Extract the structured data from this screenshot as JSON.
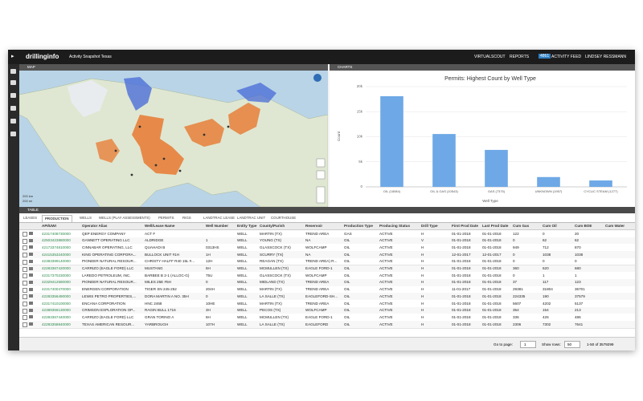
{
  "topbar": {
    "logo": "drillinginfo",
    "workspace": "Activity Snapshot Texas",
    "links": [
      "VIRTUALSCOUT",
      "REPORTS"
    ],
    "badge": "4861",
    "feed": "ACTIVITY FEED",
    "user": "LINDSEY RESSMANN"
  },
  "map": {
    "title": "MAP",
    "scale": [
      "200 km",
      "200 mi"
    ]
  },
  "charts": {
    "title": "CHARTS"
  },
  "chart_data": {
    "type": "bar",
    "title": "Permits: Highest Count by Well Type",
    "xlabel": "Well Type",
    "ylabel": "Count",
    "categories": [
      "OIL (18084)",
      "OIL & GAS (10543)",
      "GAS (7375)",
      "UNKNOWN (1957)",
      "CYCLIC STEAM (1277)"
    ],
    "values": [
      18084,
      10543,
      7375,
      1957,
      1277
    ],
    "color": "#6ea8e6",
    "ylim": [
      0,
      20000
    ],
    "yticks": [
      0,
      {
        "value": 5000,
        "label": "5k"
      },
      {
        "value": 10000,
        "label": "10k"
      },
      {
        "value": 15000,
        "label": "15k"
      },
      {
        "value": 20000,
        "label": "20k"
      }
    ],
    "grid": true
  },
  "table": {
    "title": "TABLE",
    "tabs": [
      "LEASES",
      "PRODUCTION",
      "WELLS",
      "WELLS (PLAY ASSESSMENTS)",
      "PERMITS",
      "RIGS",
      "LANDTRAC LEASE",
      "LANDTRAC UNIT",
      "COURTHOUSE"
    ],
    "active_tab": 1,
    "columns": [
      "API/UWI",
      "Operator Alias",
      "Well/Lease Name",
      "Well Number",
      "Entity Type",
      "County/Parish",
      "Reservoir",
      "Production Type",
      "Producing Status",
      "Drill Type",
      "First Prod Date",
      "Last Prod Date",
      "Cum Gas",
      "Cum Oil",
      "Cum BOE",
      "Cum Water"
    ],
    "rows": [
      [
        "42317408730000",
        "QEP ENERGY COMPANY",
        "ACT F",
        null,
        "WELL",
        "MARTIN (TX)",
        "TREND AREA",
        "GAS",
        "ACTIVE",
        "H",
        "01-01-2018",
        "01-01-2018",
        122,
        0,
        20,
        null
      ],
      [
        "42503423880000",
        "GANNETT OPERATING LLC",
        "ALDRIDGE",
        "1",
        "WELL",
        "YOUNG (TX)",
        "NA",
        "OIL",
        "ACTIVE",
        "V",
        "01-01-2018",
        "01-01-2018",
        0,
        62,
        62,
        null
      ],
      [
        "42173374810000",
        "CINNABAR OPERATING, LLC",
        "QUAHADI B",
        "0313HS",
        "WELL",
        "GLASSCOCK (TX)",
        "WOLFCAMP",
        "OIL",
        "ACTIVE",
        "H",
        "01-01-2018",
        "01-01-2018",
        949,
        712,
        870,
        null
      ],
      [
        "42415353240000",
        "KING OPERATING CORPORA...",
        "BULLOCK UNIT #1H",
        "1H",
        "WELL",
        "SCURRY (TX)",
        "NA",
        "OIL",
        "ACTIVE",
        "H",
        "12-01-2017",
        "12-01-2017",
        0,
        1038,
        1038,
        null
      ],
      [
        "42383399140000",
        "PIONEER NATURAL RESOUR...",
        "CHRISTY HALFF R40 15L #...",
        "12H",
        "WELL",
        "REAGAN (TX)",
        "TREND AREA) R...",
        "OIL",
        "ACTIVE",
        "H",
        "01-01-2018",
        "01-01-2018",
        0,
        0,
        0,
        null
      ],
      [
        "42283367420000",
        "CARRIZO (EAGLE FORD) LLC",
        "MUSTANG",
        "6H",
        "WELL",
        "MCMULLEN (TX)",
        "EAGLE FORD-1",
        "OIL",
        "ACTIVE",
        "H",
        "01-01-2018",
        "01-01-2018",
        360,
        620,
        680,
        null
      ],
      [
        "42317370230000",
        "LAREDO PETROLEUM, INC.",
        "BARBEE B 2-1 (ALLOC-G)",
        "75U",
        "WELL",
        "GLASSCOCK (TX)",
        "WOLFCAMP",
        "OIL",
        "ACTIVE",
        "H",
        "01-01-2018",
        "01-01-2018",
        0,
        1,
        1,
        null
      ],
      [
        "42329412580000",
        "PIONEER NATURAL RESOUR...",
        "MILES 25E #5H",
        "0",
        "WELL",
        "MIDLAND (TX)",
        "TREND AREA",
        "OIL",
        "ACTIVE",
        "H",
        "01-01-2018",
        "01-01-2018",
        37,
        117,
        123,
        null
      ],
      [
        "42317400470000",
        "ENERGEN CORPORATION",
        "TIGER SN 245-252",
        "204H",
        "WELL",
        "MARTIN (TX)",
        "TREND AREA",
        "OIL",
        "ACTIVE",
        "H",
        "11-01-2017",
        "01-01-2018",
        29381,
        31804,
        36701,
        null
      ],
      [
        "42283356490000",
        "LEWIS PETRO PROPERTIES,...",
        "DORA MARTIN A NO. 35H",
        "0",
        "WELL",
        "LA SALLE (TX)",
        "EAGLEFORD-SH...",
        "OIL",
        "ACTIVE",
        "H",
        "01-01-2018",
        "01-01-2018",
        224335,
        190,
        37579,
        null
      ],
      [
        "42317410100000",
        "ENCANA CORPORATION",
        "HNC 2468",
        "10HE",
        "WELL",
        "MARTIN (TX)",
        "TREND AREA",
        "OIL",
        "ACTIVE",
        "H",
        "01-01-2018",
        "01-01-2018",
        5607,
        4202,
        5137,
        null
      ],
      [
        "42389356130000",
        "CRIMSON EXPLORATION OP...",
        "RAGIN BULL 1716",
        "3H",
        "WELL",
        "PECOS (TX)",
        "WOLFCAMP",
        "OIL",
        "ACTIVE",
        "H",
        "01-01-2018",
        "01-01-2018",
        354,
        154,
        213,
        null
      ],
      [
        "42283367440000",
        "CARRIZO (EAGLE FORD) LLC",
        "GRAN TORINO A",
        "6H",
        "WELL",
        "MCMULLEN (TX)",
        "EAGLE FORD-1",
        "OIL",
        "ACTIVE",
        "H",
        "01-01-2018",
        "01-01-2018",
        336,
        426,
        486,
        null
      ],
      [
        "42283358840000",
        "TEXAS AMERICAN RESOUR...",
        "YARBROUGH",
        "107H",
        "WELL",
        "LA SALLE (TX)",
        "EAGLEFORD",
        "OIL",
        "ACTIVE",
        "H",
        "01-01-2018",
        "01-01-2018",
        2306,
        7302,
        7641,
        null
      ]
    ]
  },
  "footer": {
    "goto": "Go to page:",
    "page": "1",
    "show": "Show rows:",
    "rows": "50",
    "range": "1-50 of 3579299"
  }
}
